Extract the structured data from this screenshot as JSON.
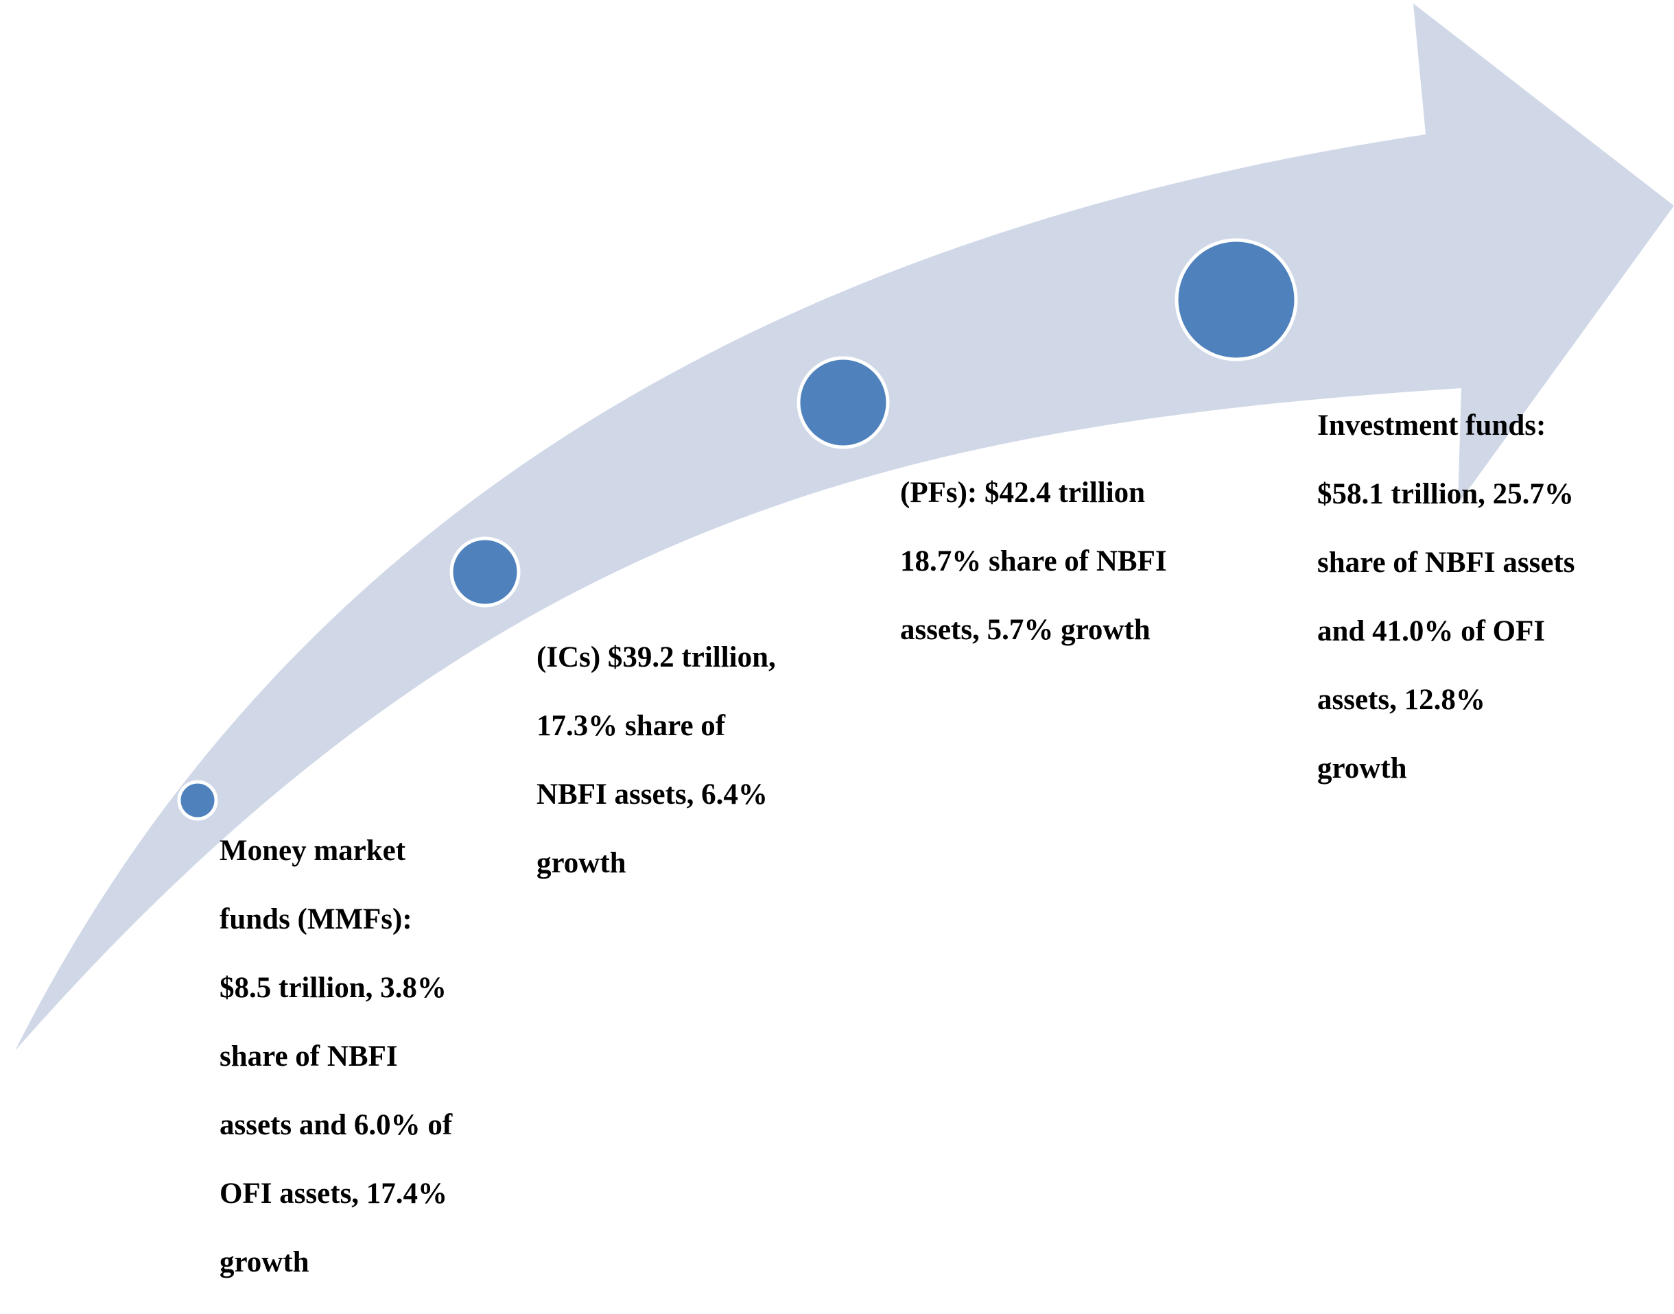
{
  "colors": {
    "arrow": "#d0d8e8",
    "node": "#4f81bd",
    "node_outline": "#ffffff",
    "text": "#000000"
  },
  "nodes": [
    {
      "id": "mmf",
      "lines": [
        "Money market",
        "funds (MMFs):",
        "$8.5 trillion, 3.8%",
        "share of NBFI",
        "assets and 6.0% of",
        "OFI assets, 17.4%",
        "growth"
      ]
    },
    {
      "id": "ic",
      "lines": [
        "(ICs) $39.2 trillion,",
        "17.3% share of",
        "NBFI assets, 6.4%",
        "growth"
      ]
    },
    {
      "id": "pf",
      "lines": [
        "(PFs): $42.4 trillion",
        "18.7% share of NBFI",
        "assets, 5.7% growth"
      ]
    },
    {
      "id": "if",
      "lines": [
        "Investment funds:",
        "$58.1 trillion, 25.7%",
        "share of NBFI assets",
        "and 41.0% of OFI",
        "assets, 12.8%",
        "growth"
      ]
    }
  ]
}
